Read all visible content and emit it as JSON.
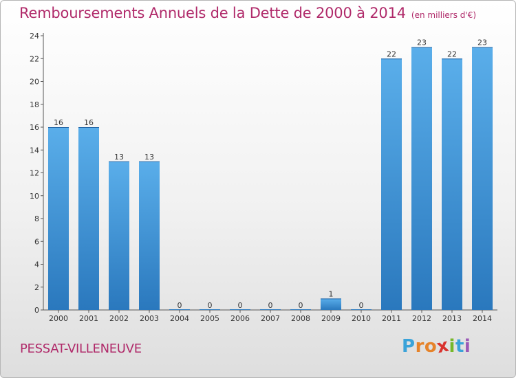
{
  "header": {
    "title": "Remboursements Annuels de la Dette de 2000 à 2014",
    "unit": "(en milliers d'€)"
  },
  "footer": {
    "place": "PESSAT-VILLENEUVE",
    "logo_letters": [
      "P",
      "r",
      "o",
      "x",
      "i",
      "t",
      "i"
    ],
    "logo_colors": [
      "#3aa3d9",
      "#e6832a",
      "#e6832a",
      "#d9322e",
      "#76b82a",
      "#3aa3d9",
      "#9b59b6"
    ]
  },
  "chart_data": {
    "type": "bar",
    "title": "Remboursements Annuels de la Dette de 2000 à 2014",
    "subtitle": "(en milliers d'€)",
    "xlabel": "",
    "ylabel": "",
    "categories": [
      "2000",
      "2001",
      "2002",
      "2003",
      "2004",
      "2005",
      "2006",
      "2007",
      "2008",
      "2009",
      "2010",
      "2011",
      "2012",
      "2013",
      "2014"
    ],
    "values": [
      16,
      16,
      13,
      13,
      0,
      0,
      0,
      0,
      0,
      1,
      0,
      22,
      23,
      22,
      23
    ],
    "ylim": [
      0,
      24
    ],
    "yticks": [
      0,
      2,
      4,
      6,
      8,
      10,
      12,
      14,
      16,
      18,
      20,
      22,
      24
    ],
    "grid": false,
    "bar_color": "#4a9fe0",
    "bar_color_dark": "#2c7cc0"
  }
}
